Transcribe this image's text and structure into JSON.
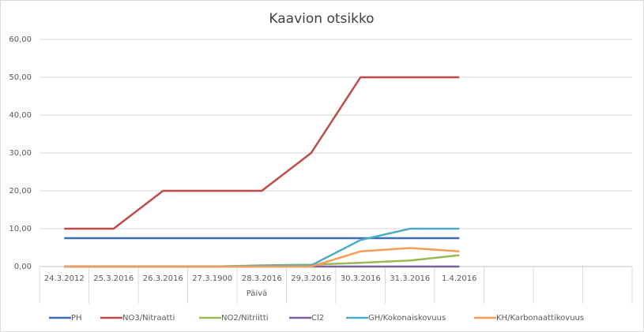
{
  "chart_data": {
    "type": "line",
    "title": "Kaavion otsikko",
    "x_label": "Päivä",
    "categories": [
      "24.3.2012",
      "25.3.2016",
      "26.3.2016",
      "27.3.1900",
      "28.3.2016",
      "29.3.2016",
      "30.3.2016",
      "31.3.2016",
      "1.4.2016",
      null,
      null,
      null
    ],
    "series": [
      {
        "name": "PH",
        "color": "#3c6fb1",
        "values": [
          7.5,
          7.5,
          7.5,
          7.5,
          7.5,
          7.5,
          7.5,
          7.5,
          7.5,
          null,
          null,
          null
        ]
      },
      {
        "name": "NO3/Nitraatti",
        "color": "#be4b48",
        "values": [
          10,
          10,
          20,
          20,
          20,
          30,
          50,
          50,
          50,
          null,
          null,
          null
        ]
      },
      {
        "name": "NO2/Nitriitti",
        "color": "#98b954",
        "values": [
          0,
          0,
          0,
          0,
          0.3,
          0.5,
          1,
          1.6,
          3,
          null,
          null,
          null
        ]
      },
      {
        "name": "Cl2",
        "color": "#7d5fa0",
        "values": [
          0,
          0,
          0,
          0,
          0,
          0,
          0,
          0,
          0,
          null,
          null,
          null
        ]
      },
      {
        "name": "GH/Kokonaiskovuus",
        "color": "#4aacc5",
        "values": [
          0,
          0,
          0,
          0,
          0.2,
          0.3,
          7,
          10,
          10,
          null,
          null,
          null
        ]
      },
      {
        "name": "KH/Karbonaattikovuus",
        "color": "#f59d56",
        "values": [
          0,
          0,
          0,
          0,
          0,
          0,
          4,
          4.9,
          4,
          null,
          null,
          null
        ]
      }
    ],
    "ylim": [
      0,
      60
    ],
    "yticks": [
      {
        "value": 0,
        "label": "0,00"
      },
      {
        "value": 10,
        "label": "10,00"
      },
      {
        "value": 20,
        "label": "20,00"
      },
      {
        "value": 30,
        "label": "30,00"
      },
      {
        "value": 40,
        "label": "40,00"
      },
      {
        "value": 50,
        "label": "50,00"
      },
      {
        "value": 60,
        "label": "60,00"
      }
    ],
    "grid": true,
    "legend": "bottom"
  }
}
